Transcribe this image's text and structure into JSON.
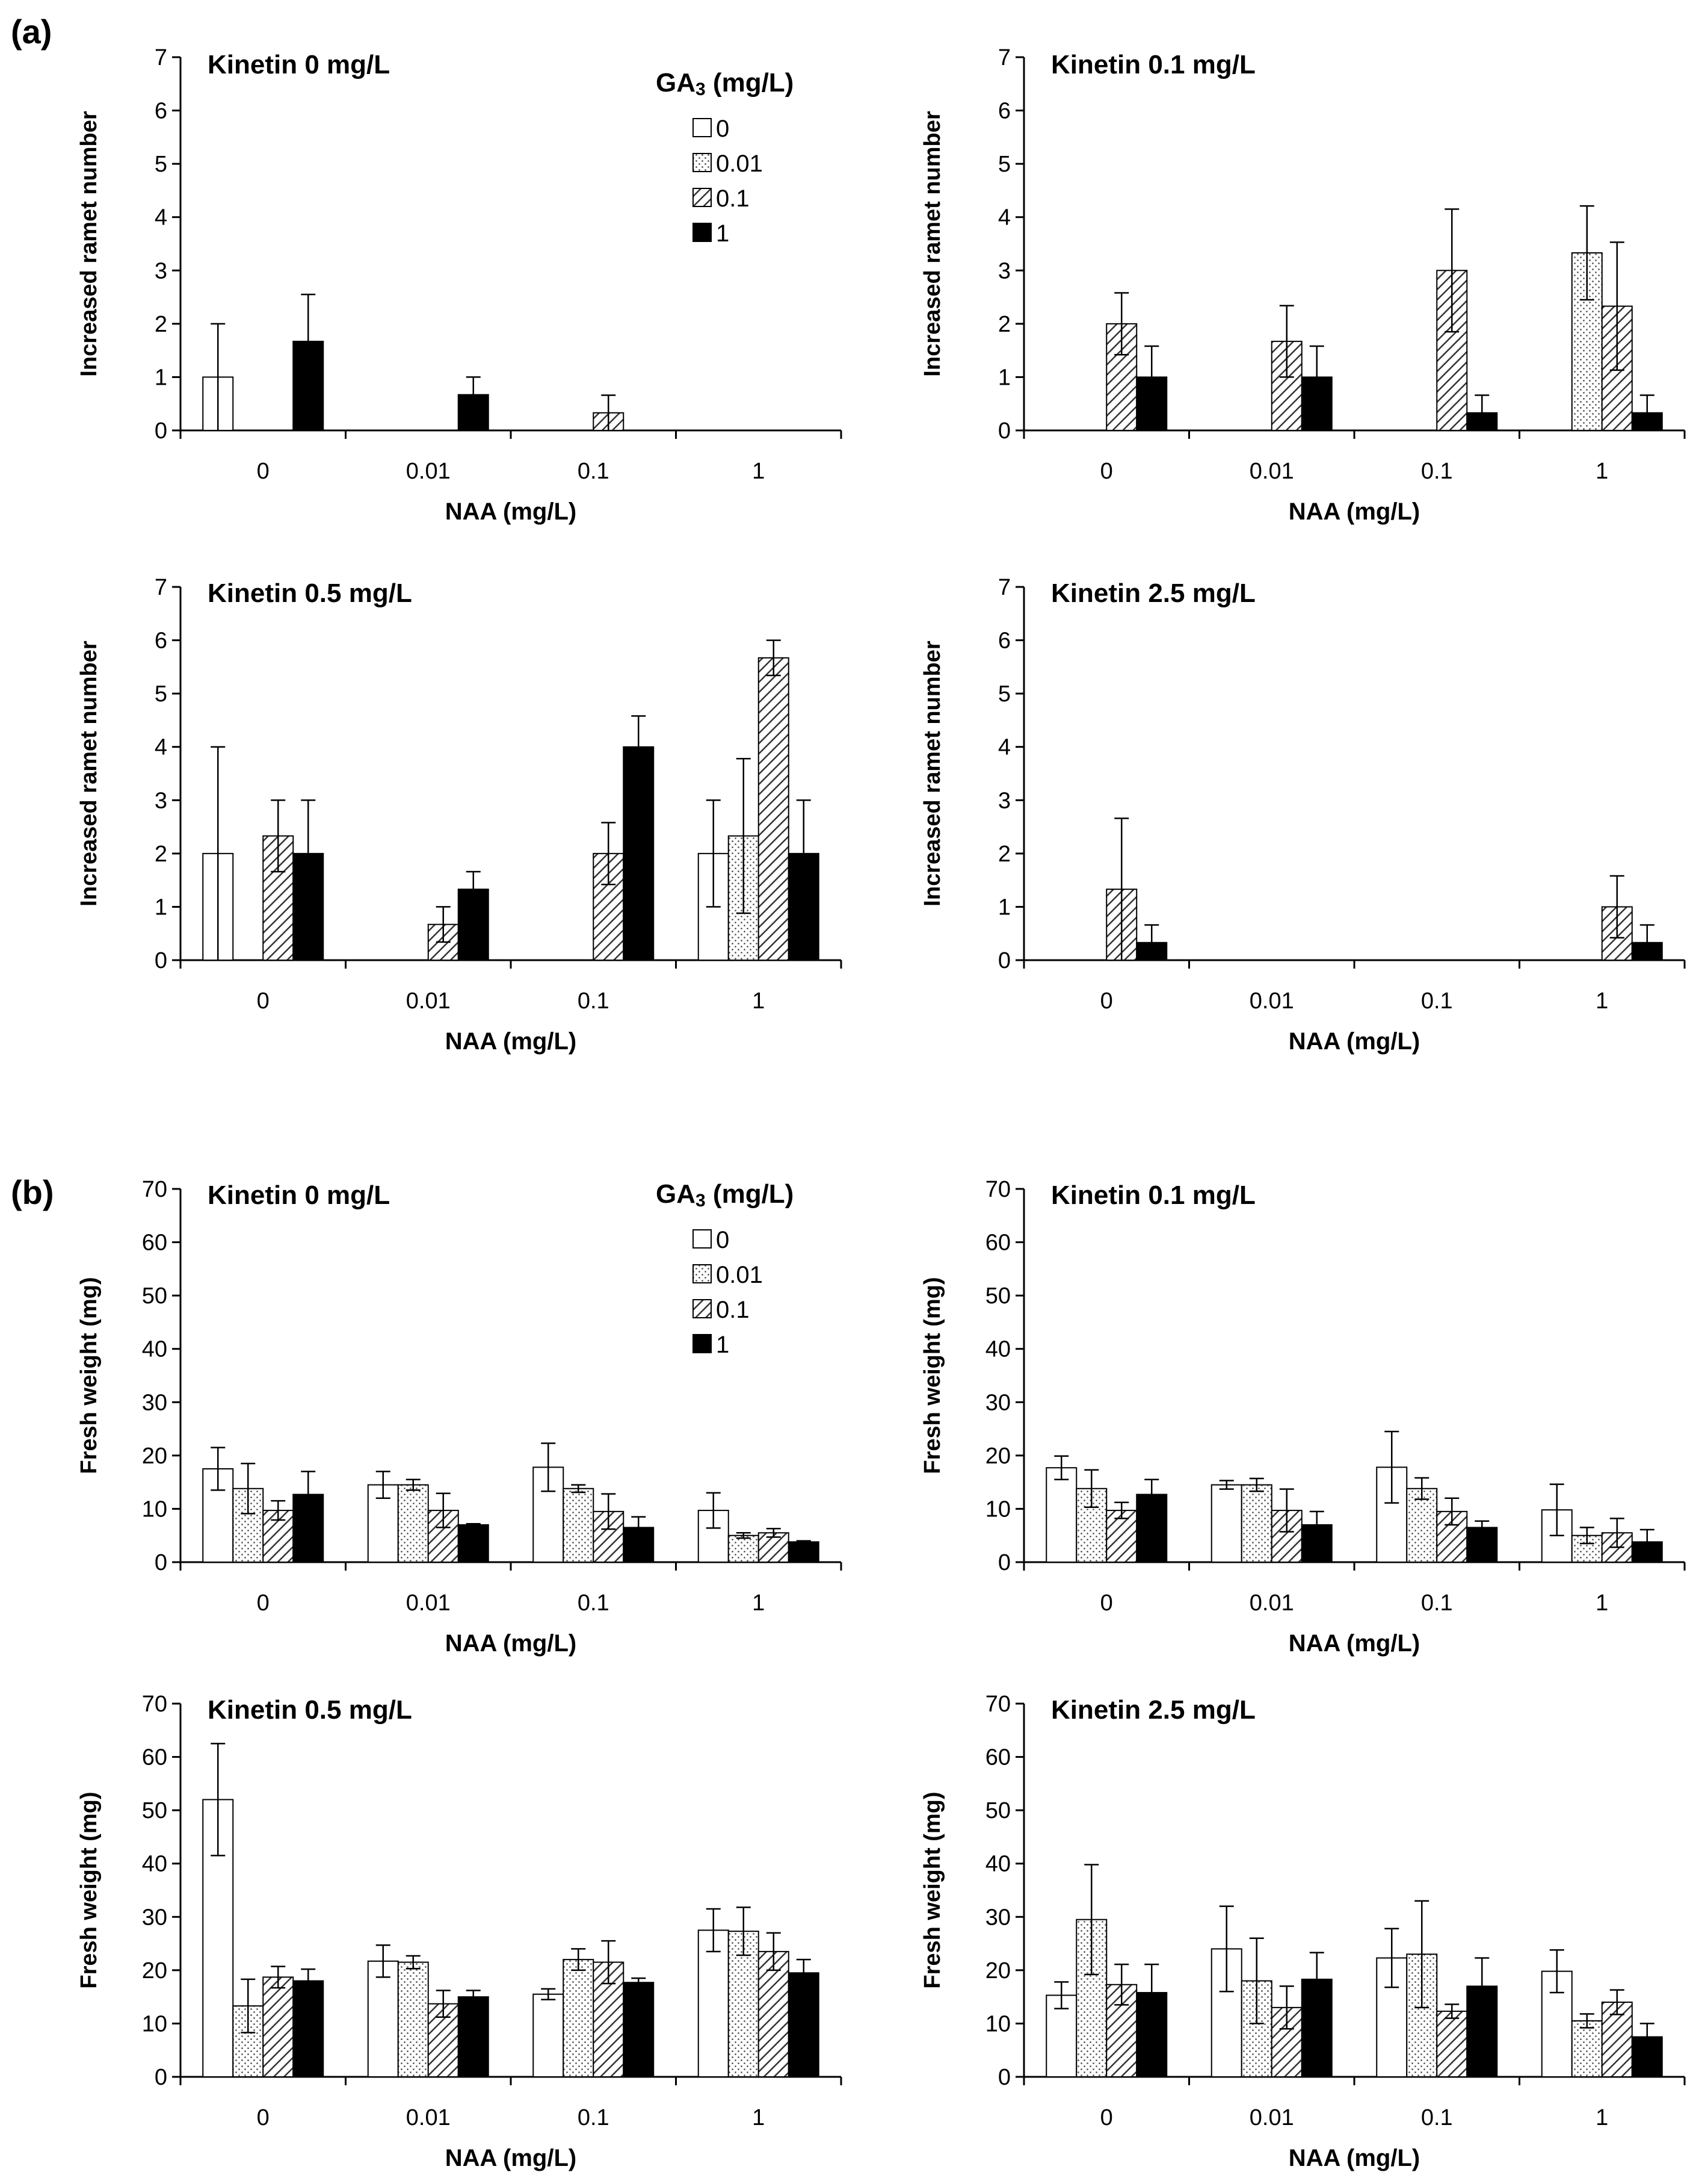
{
  "figure_labels": {
    "a": "(a)",
    "b": "(b)"
  },
  "colors": {
    "stroke": "#000000",
    "white": "#ffffff",
    "black": "#000000",
    "dots": "#555555",
    "hatch": "#333333"
  },
  "legend": {
    "title_main": "GA",
    "title_sub": "3",
    "title_unit": " (mg/L)",
    "items": [
      {
        "label": "0",
        "pattern": "white"
      },
      {
        "label": "0.01",
        "pattern": "dots"
      },
      {
        "label": "0.1",
        "pattern": "hatch"
      },
      {
        "label": "1",
        "pattern": "black"
      }
    ]
  },
  "chart_data": [
    {
      "panel": "a",
      "title": "Kinetin 0 mg/L",
      "type": "bar",
      "xlabel": "NAA (mg/L)",
      "ylabel": "Increased ramet number",
      "categories": [
        "0",
        "0.01",
        "0.1",
        "1"
      ],
      "ylim": [
        0,
        7
      ],
      "yticks": [
        0,
        1,
        2,
        3,
        4,
        5,
        6,
        7
      ],
      "series": [
        {
          "name": "0",
          "values": [
            1,
            0,
            0,
            0
          ],
          "errors": [
            1,
            0,
            0,
            0
          ]
        },
        {
          "name": "0.01",
          "values": [
            0,
            0,
            0,
            0
          ],
          "errors": [
            0,
            0,
            0,
            0
          ]
        },
        {
          "name": "0.1",
          "values": [
            0,
            0,
            0.33,
            0
          ],
          "errors": [
            0,
            0,
            0.33,
            0
          ]
        },
        {
          "name": "1",
          "values": [
            1.67,
            0.67,
            0,
            0
          ],
          "errors": [
            0.88,
            0.33,
            0,
            0
          ]
        }
      ]
    },
    {
      "panel": "a",
      "title": "Kinetin 0.1 mg/L",
      "type": "bar",
      "xlabel": "NAA (mg/L)",
      "ylabel": "Increased ramet number",
      "categories": [
        "0",
        "0.01",
        "0.1",
        "1"
      ],
      "ylim": [
        0,
        7
      ],
      "yticks": [
        0,
        1,
        2,
        3,
        4,
        5,
        6,
        7
      ],
      "series": [
        {
          "name": "0",
          "values": [
            0,
            0,
            0,
            0
          ],
          "errors": [
            0,
            0,
            0,
            0
          ]
        },
        {
          "name": "0.01",
          "values": [
            0,
            0,
            0,
            3.33
          ],
          "errors": [
            0,
            0,
            0,
            0.88
          ]
        },
        {
          "name": "0.1",
          "values": [
            2,
            1.67,
            3,
            2.33
          ],
          "errors": [
            0.58,
            0.67,
            1.15,
            1.2
          ]
        },
        {
          "name": "1",
          "values": [
            1,
            1,
            0.33,
            0.33
          ],
          "errors": [
            0.58,
            0.58,
            0.33,
            0.33
          ]
        }
      ]
    },
    {
      "panel": "a",
      "title": "Kinetin 0.5 mg/L",
      "type": "bar",
      "xlabel": "NAA (mg/L)",
      "ylabel": "Increased ramet number",
      "categories": [
        "0",
        "0.01",
        "0.1",
        "1"
      ],
      "ylim": [
        0,
        7
      ],
      "yticks": [
        0,
        1,
        2,
        3,
        4,
        5,
        6,
        7
      ],
      "series": [
        {
          "name": "0",
          "values": [
            2,
            0,
            0,
            2
          ],
          "errors": [
            2,
            0,
            0,
            1
          ]
        },
        {
          "name": "0.01",
          "values": [
            0,
            0,
            0,
            2.33
          ],
          "errors": [
            0,
            0,
            0,
            1.45
          ]
        },
        {
          "name": "0.1",
          "values": [
            2.33,
            0.67,
            2,
            5.67
          ],
          "errors": [
            0.67,
            0.33,
            0.58,
            0.33
          ]
        },
        {
          "name": "1",
          "values": [
            2,
            1.33,
            4,
            2
          ],
          "errors": [
            1,
            0.33,
            0.58,
            1
          ]
        }
      ]
    },
    {
      "panel": "a",
      "title": "Kinetin 2.5 mg/L",
      "type": "bar",
      "xlabel": "NAA (mg/L)",
      "ylabel": "Increased ramet number",
      "categories": [
        "0",
        "0.01",
        "0.1",
        "1"
      ],
      "ylim": [
        0,
        7
      ],
      "yticks": [
        0,
        1,
        2,
        3,
        4,
        5,
        6,
        7
      ],
      "series": [
        {
          "name": "0",
          "values": [
            0,
            0,
            0,
            0
          ],
          "errors": [
            0,
            0,
            0,
            0
          ]
        },
        {
          "name": "0.01",
          "values": [
            0,
            0,
            0,
            0
          ],
          "errors": [
            0,
            0,
            0,
            0
          ]
        },
        {
          "name": "0.1",
          "values": [
            1.33,
            0,
            0,
            1
          ],
          "errors": [
            1.33,
            0,
            0,
            0.58
          ]
        },
        {
          "name": "1",
          "values": [
            0.33,
            0,
            0,
            0.33
          ],
          "errors": [
            0.33,
            0,
            0,
            0.33
          ]
        }
      ]
    },
    {
      "panel": "b",
      "title": "Kinetin 0 mg/L",
      "type": "bar",
      "xlabel": "NAA (mg/L)",
      "ylabel": "Fresh weight (mg)",
      "categories": [
        "0",
        "0.01",
        "0.1",
        "1"
      ],
      "ylim": [
        0,
        70
      ],
      "yticks": [
        0,
        10,
        20,
        30,
        40,
        50,
        60,
        70
      ],
      "series": [
        {
          "name": "0",
          "values": [
            17.5,
            14.5,
            17.8,
            9.7
          ],
          "errors": [
            4,
            2.5,
            4.5,
            3.3
          ]
        },
        {
          "name": "0.01",
          "values": [
            13.8,
            14.5,
            13.8,
            5
          ],
          "errors": [
            4.7,
            1,
            0.7,
            0.5
          ]
        },
        {
          "name": "0.1",
          "values": [
            9.7,
            9.7,
            9.5,
            5.5
          ],
          "errors": [
            1.8,
            3.2,
            3.3,
            0.8
          ]
        },
        {
          "name": "1",
          "values": [
            12.7,
            7,
            6.5,
            3.8
          ],
          "errors": [
            4.3,
            0.2,
            2,
            0.2
          ]
        }
      ]
    },
    {
      "panel": "b",
      "title": "Kinetin 0.1 mg/L",
      "type": "bar",
      "xlabel": "NAA (mg/L)",
      "ylabel": "Fresh weight (mg)",
      "categories": [
        "0",
        "0.01",
        "0.1",
        "1"
      ],
      "ylim": [
        0,
        70
      ],
      "yticks": [
        0,
        10,
        20,
        30,
        40,
        50,
        60,
        70
      ],
      "series": [
        {
          "name": "0",
          "values": [
            17.7,
            14.5,
            17.8,
            9.8
          ],
          "errors": [
            2.2,
            0.8,
            6.7,
            4.8
          ]
        },
        {
          "name": "0.01",
          "values": [
            13.8,
            14.5,
            13.8,
            5
          ],
          "errors": [
            3.5,
            1.2,
            2,
            1.5
          ]
        },
        {
          "name": "0.1",
          "values": [
            9.7,
            9.7,
            9.5,
            5.5
          ],
          "errors": [
            1.5,
            4,
            2.5,
            2.7
          ]
        },
        {
          "name": "1",
          "values": [
            12.7,
            7,
            6.5,
            3.8
          ],
          "errors": [
            2.8,
            2.5,
            1.2,
            2.3
          ]
        }
      ]
    },
    {
      "panel": "b",
      "title": "Kinetin 0.5 mg/L",
      "type": "bar",
      "xlabel": "NAA (mg/L)",
      "ylabel": "Fresh weight (mg)",
      "categories": [
        "0",
        "0.01",
        "0.1",
        "1"
      ],
      "ylim": [
        0,
        70
      ],
      "yticks": [
        0,
        10,
        20,
        30,
        40,
        50,
        60,
        70
      ],
      "series": [
        {
          "name": "0",
          "values": [
            52,
            21.7,
            15.5,
            27.5
          ],
          "errors": [
            10.5,
            3,
            1,
            4
          ]
        },
        {
          "name": "0.01",
          "values": [
            13.3,
            21.5,
            22,
            27.3
          ],
          "errors": [
            5,
            1.2,
            2,
            4.5
          ]
        },
        {
          "name": "0.1",
          "values": [
            18.7,
            13.7,
            21.5,
            23.5
          ],
          "errors": [
            2,
            2.5,
            4,
            3.5
          ]
        },
        {
          "name": "1",
          "values": [
            18,
            15,
            17.7,
            19.5
          ],
          "errors": [
            2.2,
            1.2,
            0.8,
            2.5
          ]
        }
      ]
    },
    {
      "panel": "b",
      "title": "Kinetin 2.5 mg/L",
      "type": "bar",
      "xlabel": "NAA (mg/L)",
      "ylabel": "Fresh weight (mg)",
      "categories": [
        "0",
        "0.01",
        "0.1",
        "1"
      ],
      "ylim": [
        0,
        70
      ],
      "yticks": [
        0,
        10,
        20,
        30,
        40,
        50,
        60,
        70
      ],
      "series": [
        {
          "name": "0",
          "values": [
            15.3,
            24,
            22.3,
            19.8
          ],
          "errors": [
            2.5,
            8,
            5.5,
            4
          ]
        },
        {
          "name": "0.01",
          "values": [
            29.5,
            18,
            23,
            10.5
          ],
          "errors": [
            10.3,
            8,
            10,
            1.3
          ]
        },
        {
          "name": "0.1",
          "values": [
            17.3,
            13,
            12.3,
            14
          ],
          "errors": [
            3.8,
            4,
            1.3,
            2.3
          ]
        },
        {
          "name": "1",
          "values": [
            15.8,
            18.3,
            17,
            7.5
          ],
          "errors": [
            5.3,
            5,
            5.3,
            2.5
          ]
        }
      ]
    }
  ]
}
